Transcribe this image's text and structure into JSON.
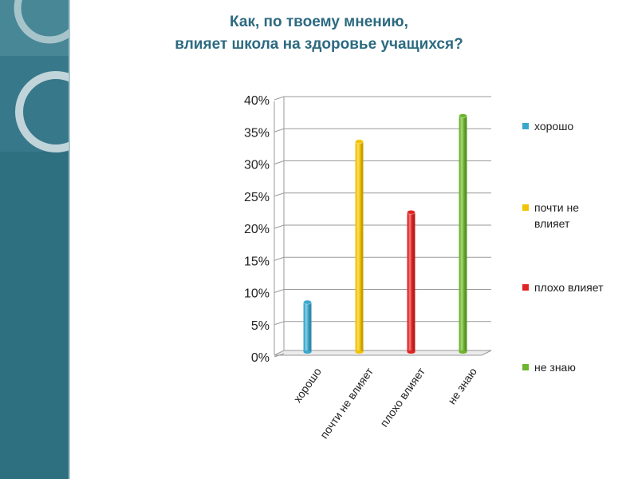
{
  "title": {
    "line1": "Как, по твоему мнению,",
    "line2": "влияет школа на здоровье учащихся?"
  },
  "colors": {
    "sidebar": "#2e6f80",
    "title_text": "#2c6a80"
  },
  "chart_data": {
    "type": "bar",
    "categories": [
      "хорошо",
      "почти не влияет",
      "плохо влияет",
      "не знаю"
    ],
    "values": [
      8,
      33,
      22,
      37
    ],
    "value_unit": "%",
    "colors": [
      "#3aa8cc",
      "#f2c300",
      "#e02424",
      "#6cb52c"
    ],
    "ylim": [
      0,
      40
    ],
    "yticks": [
      "0%",
      "5%",
      "10%",
      "15%",
      "20%",
      "25%",
      "30%",
      "35%",
      "40%"
    ],
    "grid": true,
    "legend_position": "right",
    "legend": [
      {
        "line1": "хорошо",
        "line2": ""
      },
      {
        "line1": "почти не",
        "line2": "влияет"
      },
      {
        "line1": "плохо влияет",
        "line2": ""
      },
      {
        "line1": "не знаю",
        "line2": ""
      }
    ]
  }
}
